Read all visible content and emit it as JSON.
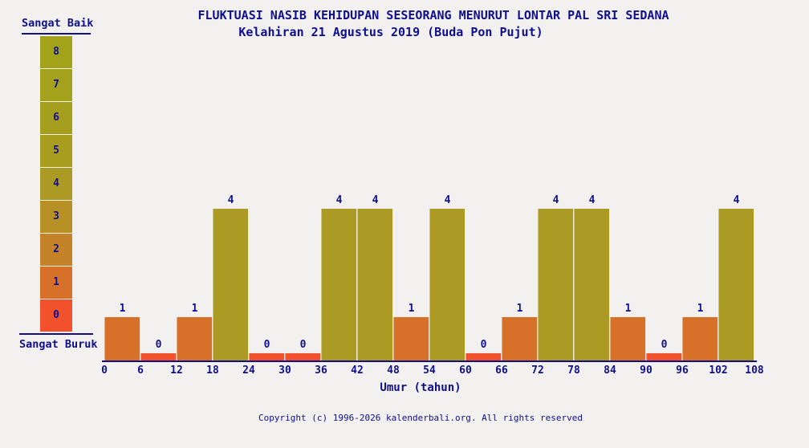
{
  "page": {
    "background_color": "#f2f1ef",
    "text_color": "#0f0f8f"
  },
  "header": {
    "title": "FLUKTUASI NASIB KEHIDUPAN SESEORANG MENURUT LONTAR PAL SRI SEDANA",
    "subtitle": "Kelahiran 21 Agustus 2019 (Buda Pon Pujut)"
  },
  "legend": {
    "top_label": "Sangat Baik",
    "bottom_label": "Sangat Buruk",
    "levels": [
      {
        "value": 8,
        "color": "#a2a31a"
      },
      {
        "value": 7,
        "color": "#a4a11c"
      },
      {
        "value": 6,
        "color": "#a69f1e"
      },
      {
        "value": 5,
        "color": "#a99d20"
      },
      {
        "value": 4,
        "color": "#ab9a23"
      },
      {
        "value": 3,
        "color": "#b79026"
      },
      {
        "value": 2,
        "color": "#c48328"
      },
      {
        "value": 1,
        "color": "#d7712a"
      },
      {
        "value": 0,
        "color": "#f1512b"
      }
    ]
  },
  "chart_data": {
    "type": "bar",
    "title": "FLUKTUASI NASIB KEHIDUPAN SESEORANG MENURUT LONTAR PAL SRI SEDANA",
    "subtitle": "Kelahiran 21 Agustus 2019 (Buda Pon Pujut)",
    "xlabel": "Umur (tahun)",
    "ylabel": "",
    "ylim": [
      0,
      8
    ],
    "x_ticks": [
      0,
      6,
      12,
      18,
      24,
      30,
      36,
      42,
      48,
      54,
      60,
      66,
      72,
      78,
      84,
      90,
      96,
      102,
      108
    ],
    "categories": [
      "0-6",
      "6-12",
      "12-18",
      "18-24",
      "24-30",
      "30-36",
      "36-42",
      "42-48",
      "48-54",
      "54-60",
      "60-66",
      "66-72",
      "72-78",
      "78-84",
      "84-90",
      "90-96",
      "96-102",
      "102-108"
    ],
    "values": [
      1,
      0,
      1,
      4,
      0,
      0,
      4,
      4,
      1,
      4,
      0,
      1,
      4,
      4,
      1,
      0,
      1,
      4
    ],
    "value_colors": {
      "0": "#f1512b",
      "1": "#d7712a",
      "4": "#ab9a23"
    },
    "data_labels_shown": true,
    "grid": false,
    "legend_position": "left",
    "scale_best_label": "Sangat Baik",
    "scale_worst_label": "Sangat Buruk"
  },
  "footer": {
    "copyright": "Copyright (c) 1996-2026 kalenderbali.org. All rights reserved"
  }
}
